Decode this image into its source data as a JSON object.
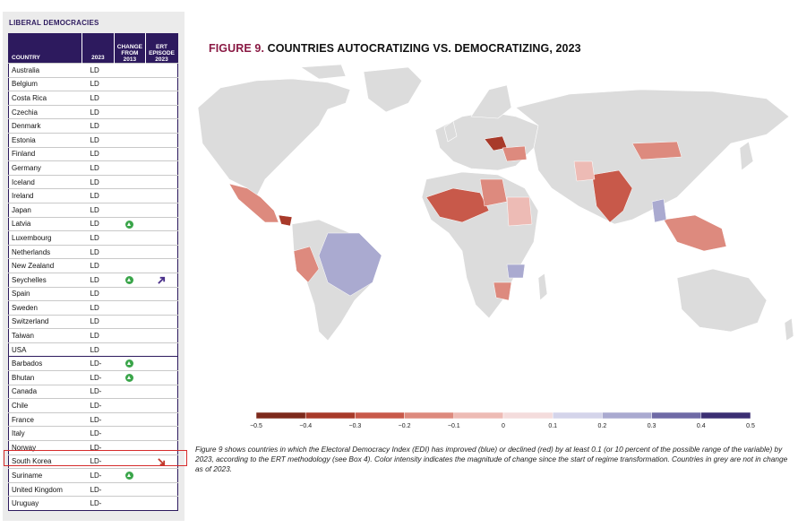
{
  "table": {
    "section_title": "LIBERAL DEMOCRACIES",
    "headers": {
      "country": "COUNTRY",
      "year": "2023",
      "change": "CHANGE FROM 2013",
      "ert": "ERT EPISODE 2023"
    },
    "rows": [
      {
        "country": "Australia",
        "score": "LD"
      },
      {
        "country": "Belgium",
        "score": "LD"
      },
      {
        "country": "Costa Rica",
        "score": "LD"
      },
      {
        "country": "Czechia",
        "score": "LD"
      },
      {
        "country": "Denmark",
        "score": "LD"
      },
      {
        "country": "Estonia",
        "score": "LD"
      },
      {
        "country": "Finland",
        "score": "LD"
      },
      {
        "country": "Germany",
        "score": "LD"
      },
      {
        "country": "Iceland",
        "score": "LD"
      },
      {
        "country": "Ireland",
        "score": "LD"
      },
      {
        "country": "Japan",
        "score": "LD"
      },
      {
        "country": "Latvia",
        "score": "LD",
        "change": "up"
      },
      {
        "country": "Luxembourg",
        "score": "LD"
      },
      {
        "country": "Netherlands",
        "score": "LD"
      },
      {
        "country": "New Zealand",
        "score": "LD"
      },
      {
        "country": "Seychelles",
        "score": "LD",
        "change": "up",
        "ert": "democratizing"
      },
      {
        "country": "Spain",
        "score": "LD"
      },
      {
        "country": "Sweden",
        "score": "LD"
      },
      {
        "country": "Switzerland",
        "score": "LD"
      },
      {
        "country": "Taiwan",
        "score": "LD"
      },
      {
        "country": "USA",
        "score": "LD"
      },
      {
        "country": "Barbados",
        "score": "LD-",
        "change": "up"
      },
      {
        "country": "Bhutan",
        "score": "LD-",
        "change": "up"
      },
      {
        "country": "Canada",
        "score": "LD-"
      },
      {
        "country": "Chile",
        "score": "LD-"
      },
      {
        "country": "France",
        "score": "LD-"
      },
      {
        "country": "Italy",
        "score": "LD-"
      },
      {
        "country": "Norway",
        "score": "LD-"
      },
      {
        "country": "South Korea",
        "score": "LD-",
        "ert": "autocratizing"
      },
      {
        "country": "Suriname",
        "score": "LD-",
        "change": "up"
      },
      {
        "country": "United Kingdom",
        "score": "LD-"
      },
      {
        "country": "Uruguay",
        "score": "LD-"
      }
    ]
  },
  "figure": {
    "number": "FIGURE 9.",
    "title": "COUNTRIES AUTOCRATIZING VS. DEMOCRATIZING, 2023",
    "legend_ticks": [
      "−0.5",
      "−0.4",
      "−0.3",
      "−0.2",
      "−0.1",
      "0",
      "0.1",
      "0.2",
      "0.3",
      "0.4",
      "0.5"
    ],
    "legend_colors": [
      "#7d2a1c",
      "#a83a2a",
      "#c8594a",
      "#dd8a7e",
      "#edbbb5",
      "#f4dcdc",
      "#d4d4ea",
      "#aaaad0",
      "#6f6aa6",
      "#3b2f73"
    ],
    "caption": "Figure 9 shows countries in which the Electoral Democracy Index (EDI) has improved (blue) or declined (red) by at least 0.1 (or 10 percent of the possible range of the variable) by 2023, according to the ERT methodology (see Box 4). Color intensity indicates the magnitude of change since the start of regime transformation. Countries in grey are not in change as of 2023."
  }
}
